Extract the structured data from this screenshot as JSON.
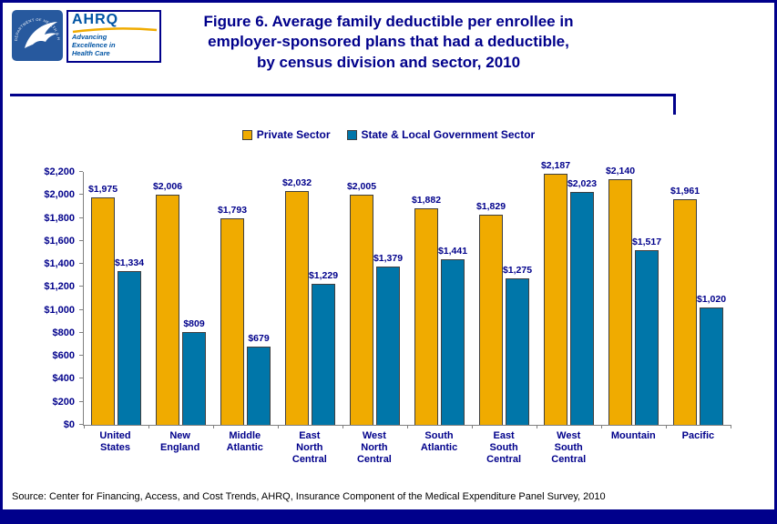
{
  "page": {
    "background": "#FFFFFF",
    "border_color": "#00008B"
  },
  "header": {
    "title": "Figure 6. Average family deductible per enrollee in\nemployer-sponsored plans that had a deductible,\nby census division and sector, 2010",
    "hhs_ring_text": "DEPARTMENT OF HEALTH & HUMAN SERVICES · USA",
    "ahrq_acronym": "AHRQ",
    "ahrq_tagline": "Advancing\nExcellence in\nHealth Care"
  },
  "chart_data": {
    "type": "bar",
    "title": "Figure 6. Average family deductible per enrollee in employer-sponsored plans that had a deductible, by census division and sector, 2010",
    "categories": [
      "United States",
      "New England",
      "Middle Atlantic",
      "East North Central",
      "West North Central",
      "South Atlantic",
      "East South Central",
      "West South Central",
      "Mountain",
      "Pacific"
    ],
    "categories_wrapped": [
      "United\nStates",
      "New\nEngland",
      "Middle\nAtlantic",
      "East\nNorth\nCentral",
      "West\nNorth\nCentral",
      "South\nAtlantic",
      "East\nSouth\nCentral",
      "West\nSouth\nCentral",
      "Mountain",
      "Pacific"
    ],
    "series": [
      {
        "name": "Private Sector",
        "color": "#F0AB00",
        "values": [
          1975,
          2006,
          1793,
          2032,
          2005,
          1882,
          1829,
          2187,
          2140,
          1961
        ],
        "value_labels": [
          "$1,975",
          "$2,006",
          "$1,793",
          "$2,032",
          "$2,005",
          "$1,882",
          "$1,829",
          "$2,187",
          "$2,140",
          "$1,961"
        ]
      },
      {
        "name": "State & Local Government Sector",
        "color": "#0076A9",
        "values": [
          1334,
          809,
          679,
          1229,
          1379,
          1441,
          1275,
          2023,
          1517,
          1020
        ],
        "value_labels": [
          "$1,334",
          "$809",
          "$679",
          "$1,229",
          "$1,379",
          "$1,441",
          "$1,275",
          "$2,023",
          "$1,517",
          "$1,020"
        ]
      }
    ],
    "xlabel": "",
    "ylabel": "",
    "ylim": [
      0,
      2200
    ],
    "ytick_step": 200,
    "ytick_labels": [
      "$0",
      "$200",
      "$400",
      "$600",
      "$800",
      "$1,000",
      "$1,200",
      "$1,400",
      "$1,600",
      "$1,800",
      "$2,000",
      "$2,200"
    ],
    "grid": false,
    "legend_position": "top"
  },
  "source": "Source: Center for Financing, Access, and Cost Trends, AHRQ, Insurance Component of the Medical Expenditure Panel Survey, 2010"
}
